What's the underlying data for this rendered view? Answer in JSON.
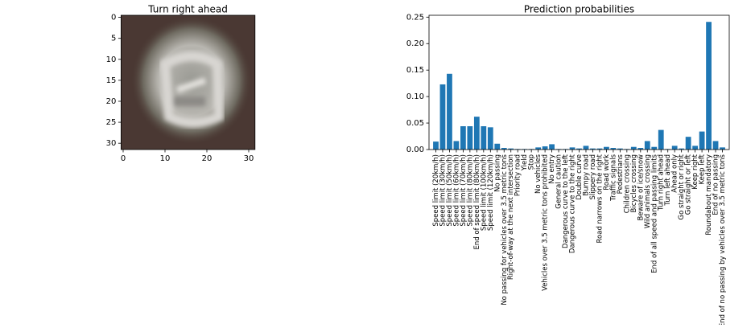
{
  "chart_data": [
    {
      "type": "image",
      "title": "Turn right ahead",
      "xlim": [
        -0.5,
        31.5
      ],
      "xticks": [
        0,
        10,
        20,
        30
      ],
      "ylim": [
        31.5,
        -0.5
      ],
      "yticks": [
        0,
        5,
        10,
        15,
        20,
        25,
        30
      ]
    },
    {
      "type": "bar",
      "title": "Prediction probabilities",
      "color": "#1f77b4",
      "categories": [
        "Speed limit (20km/h)",
        "Speed limit (30km/h)",
        "Speed limit (50km/h)",
        "Speed limit (60km/h)",
        "Speed limit (70km/h)",
        "Speed limit (80km/h)",
        "End of speed limit (80km/h)",
        "Speed limit (100km/h)",
        "Speed limit (120km/h)",
        "No passing",
        "No passing for vehicles over 3.5 metric tons",
        "Right-of-way at the next intersection",
        "Priority road",
        "Yield",
        "Stop",
        "No vehicles",
        "Vehicles over 3.5 metric tons prohibited",
        "No entry",
        "General caution",
        "Dangerous curve to the left",
        "Dangerous curve to the right",
        "Double curve",
        "Bumpy road",
        "Slippery road",
        "Road narrows on the right",
        "Road work",
        "Traffic signals",
        "Pedestrians",
        "Children crossing",
        "Bicycles crossing",
        "Beware of ice/snow",
        "Wild animals crossing",
        "End of all speed and passing limits",
        "Turn right ahead",
        "Turn left ahead",
        "Ahead only",
        "Go straight or right",
        "Go straight or left",
        "Keep right",
        "Keep left",
        "Roundabout mandatory",
        "End of no passing",
        "End of no passing by vehicles over 3.5 metric tons"
      ],
      "values": [
        0.015,
        0.123,
        0.143,
        0.016,
        0.044,
        0.044,
        0.062,
        0.044,
        0.042,
        0.011,
        0.003,
        0.002,
        0.001,
        0.001,
        0.001,
        0.004,
        0.006,
        0.01,
        0.001,
        0.001,
        0.004,
        0.002,
        0.007,
        0.002,
        0.002,
        0.005,
        0.003,
        0.002,
        0.001,
        0.005,
        0.003,
        0.016,
        0.005,
        0.037,
        0.001,
        0.007,
        0.002,
        0.024,
        0.007,
        0.034,
        0.241,
        0.016,
        0.004
      ],
      "ylim": [
        0,
        0.2535
      ],
      "yticks": [
        {
          "value": 0,
          "label": "0.00"
        },
        {
          "value": 0.05,
          "label": "0.05"
        },
        {
          "value": 0.1,
          "label": "0.10"
        },
        {
          "value": 0.15,
          "label": "0.15"
        },
        {
          "value": 0.2,
          "label": "0.20"
        },
        {
          "value": 0.25,
          "label": "0.25"
        }
      ]
    }
  ]
}
